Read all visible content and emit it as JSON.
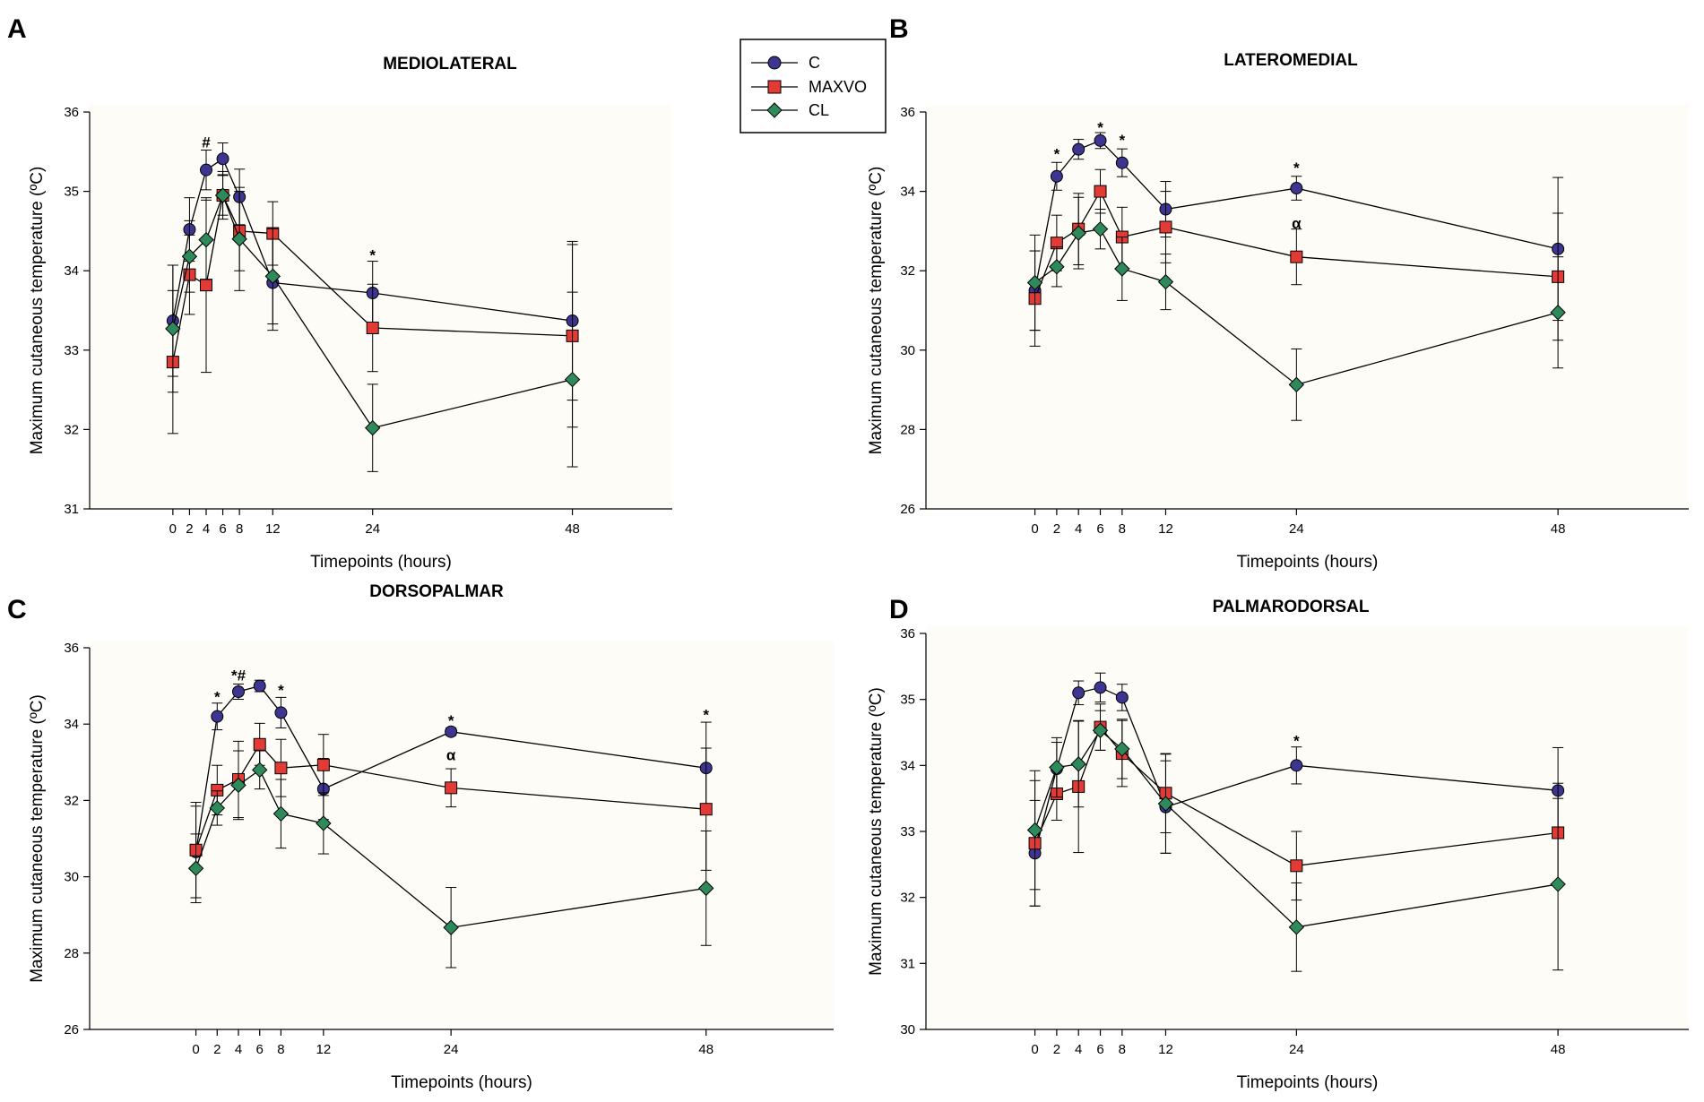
{
  "legend": {
    "entries": [
      {
        "label": "C",
        "color": "#3d3590",
        "marker": "circle"
      },
      {
        "label": "MAXVO",
        "color": "#e23b36",
        "marker": "square"
      },
      {
        "label": "CL",
        "color": "#2e8a5a",
        "marker": "diamond"
      }
    ]
  },
  "chart_data": [
    {
      "type": "line",
      "letter": "A",
      "title": "MEDIOLATERAL",
      "xlabel": "Timepoints (hours)",
      "ylabel": "Maximum cutaneous temperature (ºC)",
      "x": [
        0,
        2,
        4,
        6,
        8,
        12,
        24,
        48
      ],
      "xlim": [
        -10,
        60
      ],
      "ylim": [
        31,
        36
      ],
      "yticks": [
        31,
        32,
        33,
        34,
        35,
        36
      ],
      "series": [
        {
          "name": "C",
          "values": [
            33.37,
            34.52,
            35.27,
            35.41,
            34.93,
            33.85,
            33.72,
            33.37
          ],
          "errors": [
            0.7,
            0.4,
            0.25,
            0.2,
            0.35,
            0.6,
            0.4,
            1.0
          ]
        },
        {
          "name": "MAXVO",
          "values": [
            32.85,
            33.95,
            33.82,
            34.95,
            34.5,
            34.47,
            33.28,
            33.18
          ],
          "errors": [
            0.9,
            0.5,
            1.1,
            0.3,
            0.5,
            0.4,
            0.55,
            1.15
          ]
        },
        {
          "name": "CL",
          "values": [
            33.27,
            34.18,
            34.39,
            34.95,
            34.4,
            33.93,
            32.02,
            32.63
          ],
          "errors": [
            0.8,
            0.45,
            0.5,
            0.25,
            0.65,
            0.6,
            0.55,
            1.1
          ]
        }
      ],
      "annotations": [
        {
          "x": 4,
          "y": 35.62,
          "text": "#"
        },
        {
          "x": 24,
          "y": 34.2,
          "text": "*"
        }
      ]
    },
    {
      "type": "line",
      "letter": "B",
      "title": "LATEROMEDIAL",
      "xlabel": "Timepoints (hours)",
      "ylabel": "Maximum cutaneous temperature (ºC)",
      "x": [
        0,
        2,
        4,
        6,
        8,
        12,
        24,
        48
      ],
      "xlim": [
        -10,
        60
      ],
      "ylim": [
        26,
        36
      ],
      "yticks": [
        26,
        28,
        30,
        32,
        34,
        36
      ],
      "series": [
        {
          "name": "C",
          "values": [
            31.5,
            34.38,
            35.06,
            35.28,
            34.72,
            33.55,
            34.08,
            32.55
          ],
          "errors": [
            1.0,
            0.35,
            0.25,
            0.2,
            0.35,
            0.7,
            0.3,
            1.8
          ]
        },
        {
          "name": "MAXVO",
          "values": [
            31.3,
            32.7,
            33.05,
            34.0,
            32.85,
            33.1,
            32.35,
            31.85
          ],
          "errors": [
            1.2,
            0.7,
            0.9,
            0.55,
            0.75,
            0.9,
            0.7,
            1.6
          ]
        },
        {
          "name": "CL",
          "values": [
            31.7,
            32.1,
            32.95,
            33.05,
            32.05,
            31.72,
            29.13,
            30.95
          ],
          "errors": [
            1.2,
            0.5,
            0.9,
            0.5,
            0.8,
            0.7,
            0.9,
            1.4
          ]
        }
      ],
      "annotations": [
        {
          "x": 2,
          "y": 34.95,
          "text": "*"
        },
        {
          "x": 6,
          "y": 35.62,
          "text": "*"
        },
        {
          "x": 8,
          "y": 35.3,
          "text": "*"
        },
        {
          "x": 24,
          "y": 34.6,
          "text": "*"
        },
        {
          "x": 24,
          "y": 33.2,
          "text": "α"
        }
      ]
    },
    {
      "type": "line",
      "letter": "C",
      "title": "DORSOPALMAR",
      "xlabel": "Timepoints (hours)",
      "ylabel": "Maximum cutaneous temperature (ºC)",
      "x": [
        0,
        2,
        4,
        6,
        8,
        12,
        24,
        48
      ],
      "xlim": [
        -10,
        60
      ],
      "ylim": [
        26,
        36
      ],
      "yticks": [
        26,
        28,
        30,
        32,
        34,
        36
      ],
      "series": [
        {
          "name": "C",
          "values": [
            30.65,
            34.2,
            34.85,
            35.0,
            34.3,
            32.3,
            33.8,
            32.85
          ],
          "errors": [
            1.2,
            0.35,
            0.2,
            0.15,
            0.4,
            0.8,
            0.1,
            1.2
          ]
        },
        {
          "name": "MAXVO",
          "values": [
            30.7,
            32.27,
            32.55,
            33.47,
            32.85,
            32.93,
            32.33,
            31.77
          ],
          "errors": [
            1.25,
            0.65,
            1.0,
            0.55,
            0.75,
            0.8,
            0.5,
            1.6
          ]
        },
        {
          "name": "CL",
          "values": [
            30.22,
            31.8,
            32.4,
            32.8,
            31.65,
            31.4,
            28.67,
            29.7
          ],
          "errors": [
            0.9,
            0.45,
            0.9,
            0.5,
            0.9,
            0.8,
            1.05,
            1.5
          ]
        }
      ],
      "annotations": [
        {
          "x": 2,
          "y": 34.72,
          "text": "*"
        },
        {
          "x": 4,
          "y": 35.28,
          "text": "*#"
        },
        {
          "x": 8,
          "y": 34.9,
          "text": "*"
        },
        {
          "x": 24,
          "y": 34.1,
          "text": "*"
        },
        {
          "x": 24,
          "y": 33.2,
          "text": "α"
        },
        {
          "x": 48,
          "y": 34.25,
          "text": "*"
        }
      ]
    },
    {
      "type": "line",
      "letter": "D",
      "title": "PALMARODORSAL",
      "xlabel": "Timepoints (hours)",
      "ylabel": "Maximum cutaneous temperature (ºC)",
      "x": [
        0,
        2,
        4,
        6,
        8,
        12,
        24,
        48
      ],
      "xlim": [
        -10,
        60
      ],
      "ylim": [
        30,
        36
      ],
      "yticks": [
        30,
        31,
        32,
        33,
        34,
        35,
        36
      ],
      "series": [
        {
          "name": "C",
          "values": [
            32.67,
            33.95,
            35.1,
            35.18,
            35.03,
            33.37,
            34.0,
            33.62
          ],
          "errors": [
            0.8,
            0.4,
            0.18,
            0.22,
            0.2,
            0.7,
            0.28,
            0.65
          ]
        },
        {
          "name": "MAXVO",
          "values": [
            32.82,
            33.57,
            33.68,
            34.58,
            34.18,
            33.58,
            32.48,
            32.98
          ],
          "errors": [
            0.95,
            0.4,
            1.0,
            0.35,
            0.5,
            0.6,
            0.52,
            0.75
          ]
        },
        {
          "name": "CL",
          "values": [
            33.02,
            33.97,
            34.02,
            34.53,
            34.25,
            33.42,
            31.55,
            32.2
          ],
          "errors": [
            0.9,
            0.45,
            0.65,
            0.3,
            0.45,
            0.75,
            0.67,
            1.3
          ]
        }
      ],
      "annotations": [
        {
          "x": 24,
          "y": 34.38,
          "text": "*"
        }
      ]
    }
  ]
}
